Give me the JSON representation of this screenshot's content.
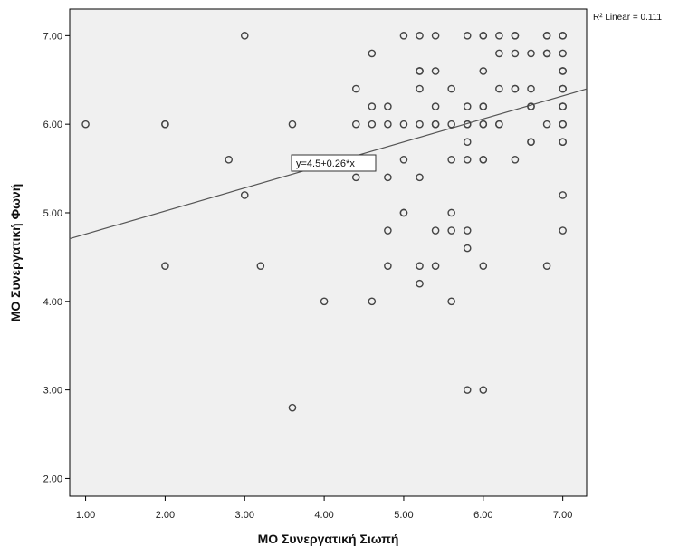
{
  "chart_data": {
    "type": "scatter",
    "xlabel": "ΜΟ Συνεργατική Σιωπή",
    "ylabel": "ΜΟ Συνεργατική Φωνή",
    "xlim": [
      0.8,
      7.3
    ],
    "ylim": [
      1.8,
      7.3
    ],
    "xticks": [
      "1.00",
      "2.00",
      "3.00",
      "4.00",
      "5.00",
      "6.00",
      "7.00"
    ],
    "yticks": [
      "2.00",
      "3.00",
      "4.00",
      "5.00",
      "6.00",
      "7.00"
    ],
    "grid": false,
    "fit_line": {
      "intercept": 4.5,
      "slope": 0.26,
      "label": "y=4.5+0.26*x"
    },
    "r2_label": "R² Linear = 0.111",
    "points": [
      [
        1.0,
        6.0
      ],
      [
        2.0,
        6.0
      ],
      [
        2.0,
        6.0
      ],
      [
        2.0,
        4.4
      ],
      [
        2.8,
        5.6
      ],
      [
        3.0,
        7.0
      ],
      [
        3.0,
        5.2
      ],
      [
        3.2,
        4.4
      ],
      [
        3.6,
        6.0
      ],
      [
        3.6,
        2.8
      ],
      [
        4.0,
        4.0
      ],
      [
        4.4,
        6.4
      ],
      [
        4.4,
        6.0
      ],
      [
        4.4,
        5.4
      ],
      [
        4.6,
        6.8
      ],
      [
        4.6,
        6.2
      ],
      [
        4.6,
        6.0
      ],
      [
        4.6,
        4.0
      ],
      [
        4.8,
        6.2
      ],
      [
        4.8,
        6.0
      ],
      [
        4.8,
        5.4
      ],
      [
        4.8,
        4.8
      ],
      [
        4.8,
        4.4
      ],
      [
        5.0,
        7.0
      ],
      [
        5.0,
        6.0
      ],
      [
        5.0,
        5.6
      ],
      [
        5.0,
        5.0
      ],
      [
        5.0,
        5.0
      ],
      [
        5.2,
        7.0
      ],
      [
        5.2,
        6.6
      ],
      [
        5.2,
        6.6
      ],
      [
        5.2,
        6.4
      ],
      [
        5.2,
        6.0
      ],
      [
        5.2,
        5.4
      ],
      [
        5.2,
        4.4
      ],
      [
        5.2,
        4.2
      ],
      [
        5.4,
        7.0
      ],
      [
        5.4,
        6.6
      ],
      [
        5.4,
        6.2
      ],
      [
        5.4,
        6.0
      ],
      [
        5.4,
        6.0
      ],
      [
        5.4,
        4.8
      ],
      [
        5.4,
        4.4
      ],
      [
        5.6,
        6.4
      ],
      [
        5.6,
        6.0
      ],
      [
        5.6,
        5.6
      ],
      [
        5.6,
        5.0
      ],
      [
        5.6,
        4.8
      ],
      [
        5.6,
        4.0
      ],
      [
        5.8,
        7.0
      ],
      [
        5.8,
        6.2
      ],
      [
        5.8,
        6.0
      ],
      [
        5.8,
        6.0
      ],
      [
        5.8,
        5.8
      ],
      [
        5.8,
        5.6
      ],
      [
        5.8,
        4.8
      ],
      [
        5.8,
        4.6
      ],
      [
        5.8,
        3.0
      ],
      [
        6.0,
        7.0
      ],
      [
        6.0,
        7.0
      ],
      [
        6.0,
        6.6
      ],
      [
        6.0,
        6.2
      ],
      [
        6.0,
        6.2
      ],
      [
        6.0,
        6.0
      ],
      [
        6.0,
        6.0
      ],
      [
        6.0,
        5.6
      ],
      [
        6.0,
        5.6
      ],
      [
        6.0,
        4.4
      ],
      [
        6.0,
        3.0
      ],
      [
        6.2,
        7.0
      ],
      [
        6.2,
        6.8
      ],
      [
        6.2,
        6.4
      ],
      [
        6.2,
        6.0
      ],
      [
        6.2,
        6.0
      ],
      [
        6.4,
        7.0
      ],
      [
        6.4,
        7.0
      ],
      [
        6.4,
        6.8
      ],
      [
        6.4,
        6.4
      ],
      [
        6.4,
        6.4
      ],
      [
        6.4,
        5.6
      ],
      [
        6.6,
        6.8
      ],
      [
        6.6,
        6.4
      ],
      [
        6.6,
        6.2
      ],
      [
        6.6,
        6.2
      ],
      [
        6.6,
        5.8
      ],
      [
        6.6,
        5.8
      ],
      [
        6.8,
        7.0
      ],
      [
        6.8,
        7.0
      ],
      [
        6.8,
        6.8
      ],
      [
        6.8,
        6.8
      ],
      [
        6.8,
        6.0
      ],
      [
        6.8,
        4.4
      ],
      [
        7.0,
        7.0
      ],
      [
        7.0,
        7.0
      ],
      [
        7.0,
        6.8
      ],
      [
        7.0,
        6.6
      ],
      [
        7.0,
        6.6
      ],
      [
        7.0,
        6.4
      ],
      [
        7.0,
        6.4
      ],
      [
        7.0,
        6.2
      ],
      [
        7.0,
        6.2
      ],
      [
        7.0,
        6.0
      ],
      [
        7.0,
        6.0
      ],
      [
        7.0,
        5.8
      ],
      [
        7.0,
        5.8
      ],
      [
        7.0,
        5.2
      ],
      [
        7.0,
        4.8
      ]
    ]
  }
}
